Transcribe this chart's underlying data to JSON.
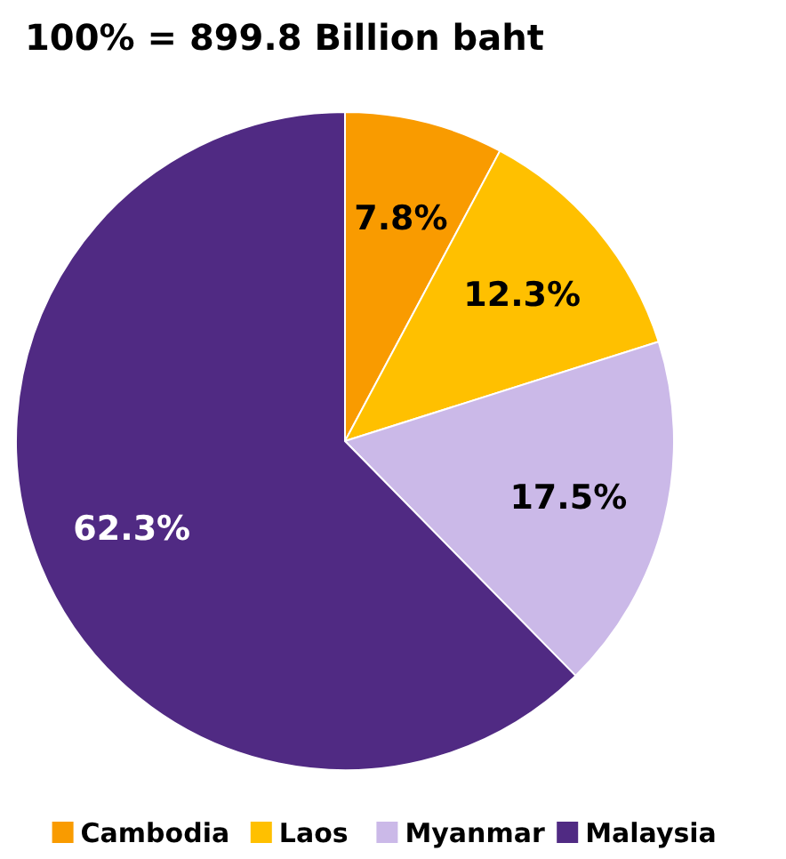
{
  "chart_data": {
    "type": "pie",
    "title": "100% = 899.8 Billion baht",
    "categories": [
      "Cambodia",
      "Laos",
      "Myanmar",
      "Malaysia"
    ],
    "values": [
      7.8,
      12.3,
      17.5,
      62.3
    ],
    "value_labels": [
      "7.8%",
      "12.3%",
      "17.5%",
      "62.3%"
    ],
    "colors": [
      "#f99b00",
      "#ffc000",
      "#cbb9e8",
      "#502a83"
    ],
    "legend": "bottom"
  }
}
